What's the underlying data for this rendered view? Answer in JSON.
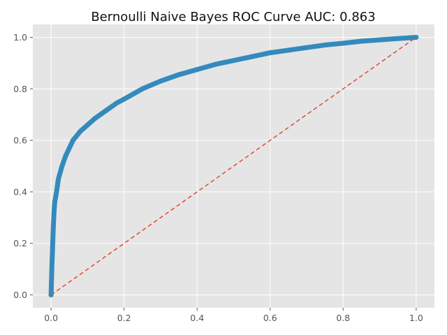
{
  "chart_data": {
    "type": "line",
    "title": "Bernoulli Naive Bayes ROC Curve  AUC: 0.863",
    "xlabel": "",
    "ylabel": "",
    "xlim": [
      -0.05,
      1.05
    ],
    "ylim": [
      -0.05,
      1.05
    ],
    "xticks": [
      0.0,
      0.2,
      0.4,
      0.6,
      0.8,
      1.0
    ],
    "yticks": [
      0.0,
      0.2,
      0.4,
      0.6,
      0.8,
      1.0
    ],
    "xtick_labels": [
      "0.0",
      "0.2",
      "0.4",
      "0.6",
      "0.8",
      "1.0"
    ],
    "ytick_labels": [
      "0.0",
      "0.2",
      "0.4",
      "0.6",
      "0.8",
      "1.0"
    ],
    "grid": true,
    "background": "#e5e5e5",
    "series": [
      {
        "style": "line-with-markers",
        "color": "#348abd",
        "x": [
          0.0,
          0.001,
          0.002,
          0.004,
          0.006,
          0.008,
          0.01,
          0.015,
          0.02,
          0.03,
          0.04,
          0.05,
          0.06,
          0.08,
          0.1,
          0.12,
          0.15,
          0.18,
          0.2,
          0.25,
          0.3,
          0.35,
          0.4,
          0.45,
          0.5,
          0.55,
          0.6,
          0.65,
          0.7,
          0.75,
          0.8,
          0.85,
          0.9,
          0.95,
          1.0
        ],
        "y": [
          0.0,
          0.05,
          0.1,
          0.18,
          0.26,
          0.32,
          0.36,
          0.4,
          0.45,
          0.5,
          0.54,
          0.57,
          0.6,
          0.635,
          0.66,
          0.685,
          0.715,
          0.745,
          0.76,
          0.8,
          0.83,
          0.855,
          0.875,
          0.895,
          0.91,
          0.925,
          0.94,
          0.95,
          0.96,
          0.97,
          0.977,
          0.985,
          0.99,
          0.995,
          1.0
        ]
      },
      {
        "style": "dashed-line",
        "color": "#e24a33",
        "x": [
          0.0,
          1.0
        ],
        "y": [
          0.0,
          1.0
        ]
      }
    ]
  }
}
